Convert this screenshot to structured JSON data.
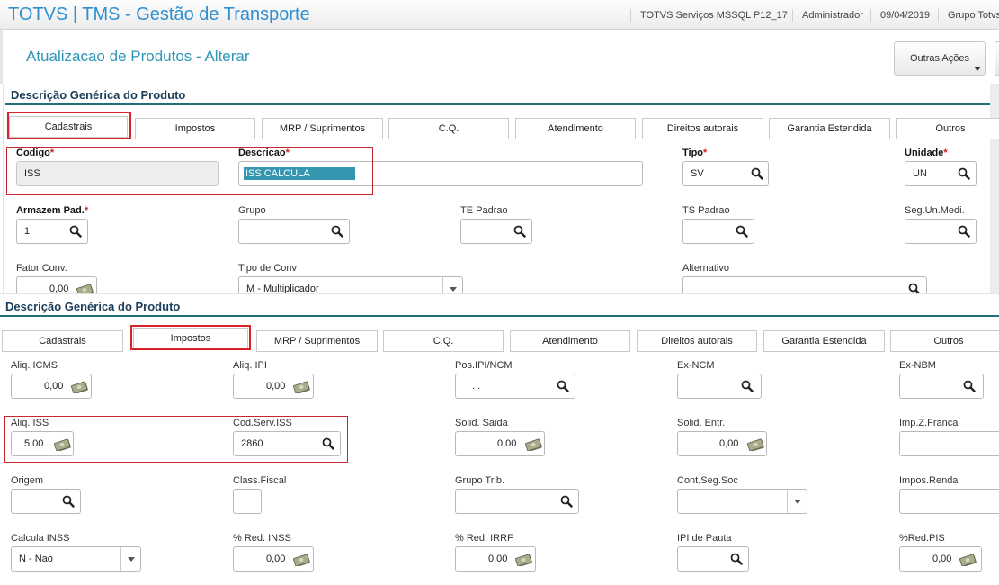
{
  "app": {
    "title": "TOTVS | TMS - Gestão de Transporte",
    "environment": "TOTVS Serviços MSSQL P12_17",
    "user": "Administrador",
    "date": "09/04/2019",
    "group": "Grupo Totvs"
  },
  "page": {
    "title": "Atualizacao de Produtos - Alterar",
    "outras_acoes": "Outras Ações"
  },
  "panel1": {
    "section_title": "Descrição Genérica do Produto",
    "tabs": [
      "Cadastrais",
      "Impostos",
      "MRP / Suprimentos",
      "C.Q.",
      "Atendimento",
      "Direitos autorais",
      "Garantia Estendida",
      "Outros"
    ],
    "active_tab": "Cadastrais",
    "fields": {
      "codigo": {
        "label": "Codigo",
        "value": "ISS"
      },
      "descricao": {
        "label": "Descricao",
        "value": "ISS CALCULA"
      },
      "tipo": {
        "label": "Tipo",
        "value": "SV"
      },
      "unidade": {
        "label": "Unidade",
        "value": "UN"
      },
      "armazem": {
        "label": "Armazem Pad.",
        "value": "1"
      },
      "grupo": {
        "label": "Grupo",
        "value": ""
      },
      "te_padrao": {
        "label": "TE Padrao",
        "value": ""
      },
      "ts_padrao": {
        "label": "TS Padrao",
        "value": ""
      },
      "seg_un": {
        "label": "Seg.Un.Medi.",
        "value": ""
      },
      "fator_conv": {
        "label": "Fator Conv.",
        "value": "0,00"
      },
      "tipo_conv": {
        "label": "Tipo de Conv",
        "value": "M - Multiplicador"
      },
      "alternativo": {
        "label": "Alternativo",
        "value": ""
      }
    }
  },
  "panel2": {
    "section_title": "Descrição Genérica do Produto",
    "tabs": [
      "Cadastrais",
      "Impostos",
      "MRP / Suprimentos",
      "C.Q.",
      "Atendimento",
      "Direitos autorais",
      "Garantia Estendida",
      "Outros"
    ],
    "active_tab": "Impostos",
    "fields": {
      "aliq_icms": {
        "label": "Aliq. ICMS",
        "value": "0,00"
      },
      "aliq_ipi": {
        "label": "Aliq. IPI",
        "value": "0,00"
      },
      "pos_ipi": {
        "label": "Pos.IPI/NCM",
        "value": ". ."
      },
      "ex_ncm": {
        "label": "Ex-NCM",
        "value": ""
      },
      "ex_nbm": {
        "label": "Ex-NBM",
        "value": ""
      },
      "aliq_iss": {
        "label": "Aliq. ISS",
        "value": "5.00"
      },
      "cod_serv_iss": {
        "label": "Cod.Serv.ISS",
        "value": "2860"
      },
      "solid_saida": {
        "label": "Solid. Saida",
        "value": "0,00"
      },
      "solid_entr": {
        "label": "Solid. Entr.",
        "value": "0,00"
      },
      "imp_z_franca": {
        "label": "Imp.Z.Franca",
        "value": ""
      },
      "origem": {
        "label": "Origem",
        "value": ""
      },
      "class_fiscal": {
        "label": "Class.Fiscal",
        "value": ""
      },
      "grupo_trib": {
        "label": "Grupo Trib.",
        "value": ""
      },
      "cont_seg_soc": {
        "label": "Cont.Seg.Soc",
        "value": ""
      },
      "impos_renda": {
        "label": "Impos.Renda",
        "value": ""
      },
      "calcula_inss": {
        "label": "Calcula INSS",
        "value": "N - Nao"
      },
      "red_inss": {
        "label": "% Red. INSS",
        "value": "0,00"
      },
      "red_irrf": {
        "label": "% Red. IRRF",
        "value": "0,00"
      },
      "ipi_pauta": {
        "label": "IPI de Pauta",
        "value": ""
      },
      "red_pis": {
        "label": "%Red.PIS",
        "value": "0,00"
      }
    }
  },
  "colors": {
    "brand_blue": "#2e8fd0",
    "highlight_red": "#d8232a",
    "section_rule": "#1e6f79",
    "selection": "#3596b0"
  },
  "icons": [
    "search-icon",
    "money-icon",
    "dropdown-icon"
  ]
}
